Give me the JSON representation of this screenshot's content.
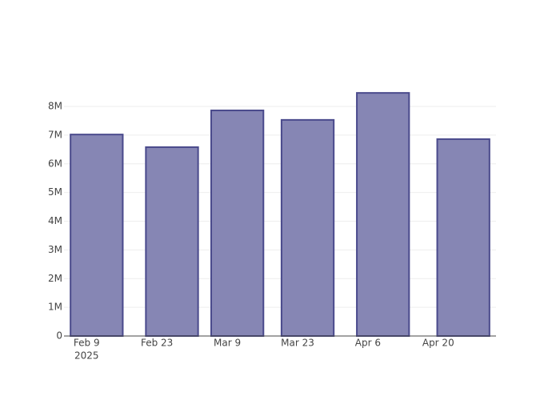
{
  "chart_data": {
    "type": "bar",
    "x": [
      "2025-02-11",
      "2025-02-26",
      "2025-03-11",
      "2025-03-25",
      "2025-04-09",
      "2025-04-25"
    ],
    "values": [
      7020000,
      6580000,
      7860000,
      7530000,
      8470000,
      6860000
    ],
    "bar_width_days": 10.4,
    "color": "#7f7fb0",
    "edge_color": "#4a4a8c",
    "xlim": [
      "2025-02-04T12:00:00Z",
      "2025-05-01T12:00:00Z"
    ],
    "xticks": [
      {
        "value": "2025-02-09",
        "label": "Feb 9"
      },
      {
        "value": "2025-02-23",
        "label": "Feb 23"
      },
      {
        "value": "2025-03-09",
        "label": "Mar 9"
      },
      {
        "value": "2025-03-23",
        "label": "Mar 23"
      },
      {
        "value": "2025-04-06",
        "label": "Apr 6"
      },
      {
        "value": "2025-04-20",
        "label": "Apr 20"
      }
    ],
    "xtick_year": "2025",
    "ylim": [
      0,
      8920000
    ],
    "yticks": [
      0,
      {
        "value": 1000000,
        "label": "1M"
      },
      {
        "value": 2000000,
        "label": "2M"
      },
      {
        "value": 3000000,
        "label": "3M"
      },
      {
        "value": 4000000,
        "label": "4M"
      },
      {
        "value": 5000000,
        "label": "5M"
      },
      {
        "value": 6000000,
        "label": "6M"
      },
      {
        "value": 7000000,
        "label": "7M"
      },
      {
        "value": 8000000,
        "label": "8M"
      }
    ],
    "grid": true
  }
}
